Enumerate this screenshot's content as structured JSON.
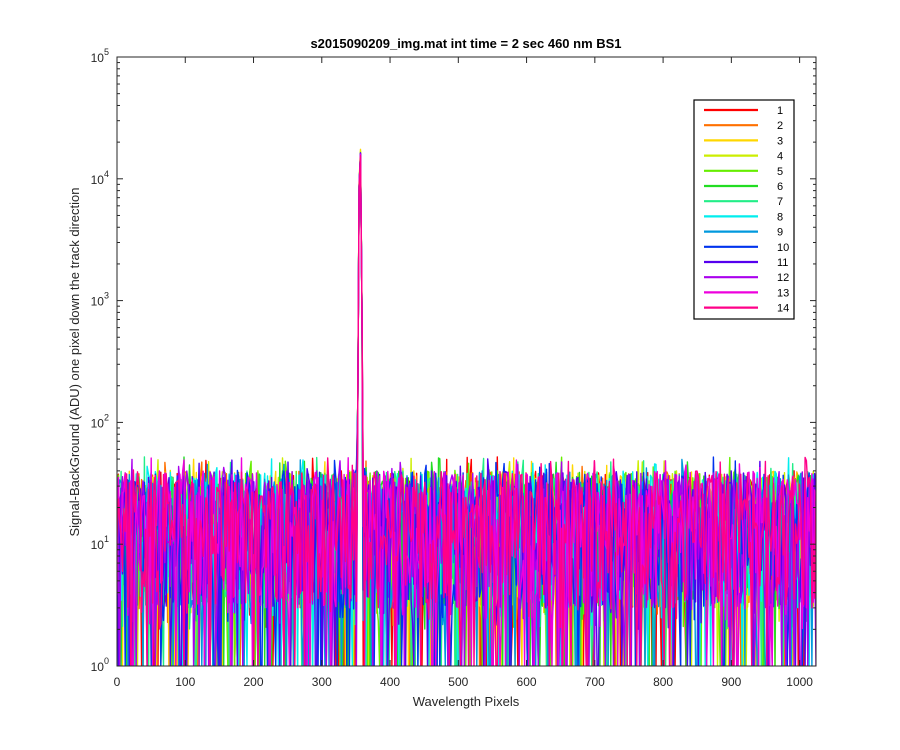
{
  "chart_data": {
    "type": "line",
    "title": "s2015090209_img.mat int time = 2 sec  460 nm BS1",
    "xlabel": "Wavelength Pixels",
    "ylabel": "Signal-BackGround (ADU) one pixel down the track direction",
    "xlim": [
      0,
      1024
    ],
    "ylim": [
      1,
      100000
    ],
    "yscale": "log",
    "grid": false,
    "legend_position": "top-right",
    "x_ticks": [
      0,
      100,
      200,
      300,
      400,
      500,
      600,
      700,
      800,
      900,
      1000
    ],
    "y_ticks": [
      {
        "value": 1,
        "base": "10",
        "exp": "0"
      },
      {
        "value": 10,
        "base": "10",
        "exp": "1"
      },
      {
        "value": 100,
        "base": "10",
        "exp": "2"
      },
      {
        "value": 1000,
        "base": "10",
        "exp": "3"
      },
      {
        "value": 10000,
        "base": "10",
        "exp": "4"
      },
      {
        "value": 100000,
        "base": "10",
        "exp": "5"
      }
    ],
    "peak": {
      "center": 356,
      "half_width": 4,
      "peak_values": [
        27000,
        28000,
        31000,
        30000,
        29000,
        28500,
        28000,
        27500,
        28000,
        28500,
        29000,
        28500,
        28000,
        27500
      ]
    },
    "noise": {
      "typical_min": 1,
      "typical_max": 45,
      "point_count": 512
    },
    "series": [
      {
        "name": "1",
        "color": "#ff0000"
      },
      {
        "name": "2",
        "color": "#ff7000"
      },
      {
        "name": "3",
        "color": "#ffd700"
      },
      {
        "name": "4",
        "color": "#ccee00"
      },
      {
        "name": "5",
        "color": "#66ee00"
      },
      {
        "name": "6",
        "color": "#22dd22"
      },
      {
        "name": "7",
        "color": "#22ee88"
      },
      {
        "name": "8",
        "color": "#00eeee"
      },
      {
        "name": "9",
        "color": "#0099dd"
      },
      {
        "name": "10",
        "color": "#0033ee"
      },
      {
        "name": "11",
        "color": "#5500ee"
      },
      {
        "name": "12",
        "color": "#aa00ee"
      },
      {
        "name": "13",
        "color": "#ee00dd"
      },
      {
        "name": "14",
        "color": "#ff0088"
      }
    ]
  }
}
